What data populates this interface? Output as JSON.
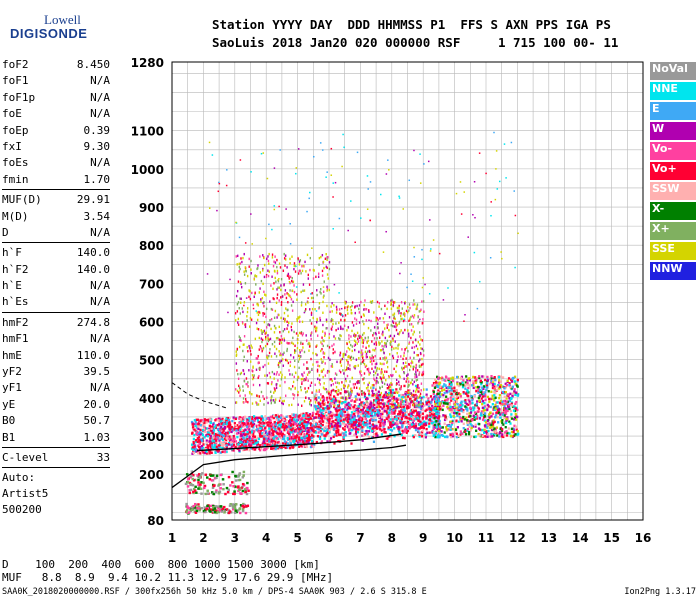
{
  "logo": {
    "line1": "Lowell",
    "line2": "DIGISONDE"
  },
  "station": {
    "header": "Station YYYY DAY  DDD HHMMSS P1  FFS S AXN PPS IGA PS",
    "values": "SaoLuis 2018 Jan20 020 000000 RSF     1 715 100 00- 11"
  },
  "params": [
    [
      {
        "k": "foF2",
        "v": "8.450"
      },
      {
        "k": "foF1",
        "v": "N/A"
      },
      {
        "k": "foF1p",
        "v": "N/A"
      },
      {
        "k": "foE",
        "v": "N/A"
      },
      {
        "k": "foEp",
        "v": "0.39"
      },
      {
        "k": "fxI",
        "v": "9.30"
      },
      {
        "k": "foEs",
        "v": "N/A"
      },
      {
        "k": "fmin",
        "v": "1.70"
      }
    ],
    [
      {
        "k": "MUF(D)",
        "v": "29.91"
      },
      {
        "k": "M(D)",
        "v": "3.54"
      },
      {
        "k": "D",
        "v": "N/A"
      }
    ],
    [
      {
        "k": "h`F",
        "v": "140.0"
      },
      {
        "k": "h`F2",
        "v": "140.0"
      },
      {
        "k": "h`E",
        "v": "N/A"
      },
      {
        "k": "h`Es",
        "v": "N/A"
      }
    ],
    [
      {
        "k": "hmF2",
        "v": "274.8"
      },
      {
        "k": "hmF1",
        "v": "N/A"
      },
      {
        "k": "hmE",
        "v": "110.0"
      },
      {
        "k": "yF2",
        "v": "39.5"
      },
      {
        "k": "yF1",
        "v": "N/A"
      },
      {
        "k": "yE",
        "v": "20.0"
      },
      {
        "k": "B0",
        "v": "50.7"
      },
      {
        "k": "B1",
        "v": "1.03"
      }
    ],
    [
      {
        "k": "C-level",
        "v": "33"
      }
    ]
  ],
  "autoscaling": {
    "line1": "Auto:",
    "line2": "Artist5",
    "line3": "500200"
  },
  "legend": [
    {
      "label": "NoVal",
      "color": "#999999"
    },
    {
      "label": "NNE",
      "color": "#00e5ee"
    },
    {
      "label": "E",
      "color": "#3fa9f5"
    },
    {
      "label": "W",
      "color": "#b000b0"
    },
    {
      "label": "Vo-",
      "color": "#ff40a0"
    },
    {
      "label": "Vo+",
      "color": "#ff0033"
    },
    {
      "label": "SSW",
      "color": "#ffb0b0"
    },
    {
      "label": "X-",
      "color": "#008000"
    },
    {
      "label": "X+",
      "color": "#80b060"
    },
    {
      "label": "SSE",
      "color": "#d4d400"
    },
    {
      "label": "NNW",
      "color": "#2020e0"
    }
  ],
  "chart_data": {
    "type": "scatter",
    "xlabel": "",
    "ylabel": "",
    "xlim": [
      1,
      16
    ],
    "ylim": [
      80,
      1280
    ],
    "x_ticks": [
      1,
      2,
      3,
      4,
      5,
      6,
      7,
      8,
      9,
      10,
      11,
      12,
      13,
      14,
      15,
      16
    ],
    "y_ticks": [
      80,
      200,
      300,
      400,
      500,
      600,
      700,
      800,
      900,
      1000,
      1100,
      1280
    ],
    "grid": true,
    "profile_curve": [
      [
        1,
        165
      ],
      [
        1.5,
        195
      ],
      [
        2,
        225
      ],
      [
        3,
        238
      ],
      [
        4,
        245
      ],
      [
        5,
        252
      ],
      [
        6,
        258
      ],
      [
        7,
        263
      ],
      [
        8,
        270
      ],
      [
        8.45,
        276
      ]
    ],
    "trace_upper": [
      [
        1.8,
        262
      ],
      [
        2.5,
        265
      ],
      [
        4,
        272
      ],
      [
        5.5,
        280
      ],
      [
        7,
        290
      ],
      [
        8.3,
        305
      ]
    ],
    "dashed_curve": [
      [
        1,
        440
      ],
      [
        1.5,
        410
      ],
      [
        2,
        392
      ],
      [
        2.8,
        372
      ]
    ]
  },
  "bottom": {
    "d_line": "D    100  200  400  600  800 1000 1500 3000 [km]",
    "muf_line": "MUF   8.8  8.9  9.4 10.2 11.3 12.9 17.6 29.9 [MHz]"
  },
  "footer": "SAA0K_2018020000000.RSF / 300fx256h 50 kHz 5.0 km / DPS-4 SAA0K 903 / 2.6 S 315.8 E",
  "version": "Ion2Png 1.3.17"
}
